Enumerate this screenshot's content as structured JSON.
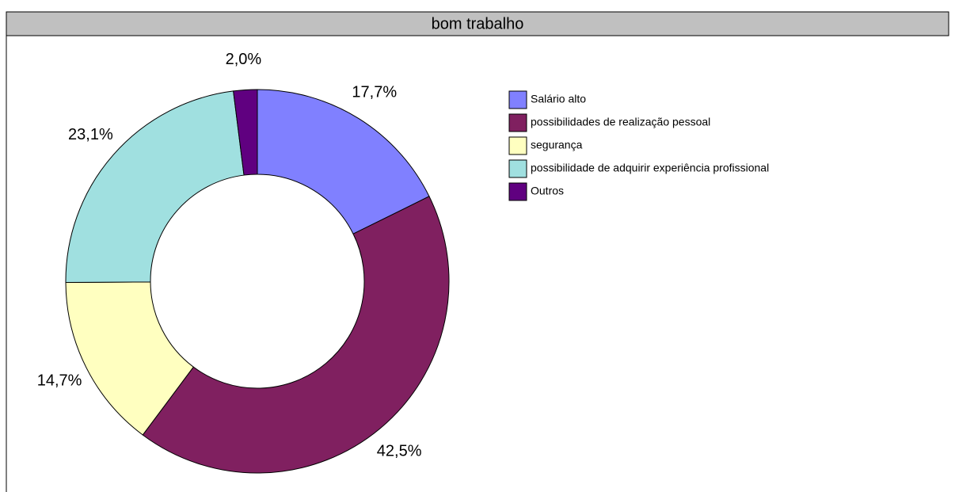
{
  "chart_data": {
    "type": "pie",
    "title": "bom trabalho",
    "categories": [
      "Salário alto",
      "possibilidades de realização pessoal",
      "segurança",
      "possibilidade de adquirir experiência profissional",
      "Outros"
    ],
    "values": [
      17.7,
      42.5,
      14.7,
      23.1,
      2.0
    ],
    "value_labels": [
      "17,7%",
      "42,5%",
      "14,7%",
      "23,1%",
      "2,0%"
    ],
    "colors": [
      "#8080ff",
      "#802060",
      "#ffffc0",
      "#a0e0e0",
      "#600080"
    ],
    "donut": true,
    "legend": "right"
  }
}
